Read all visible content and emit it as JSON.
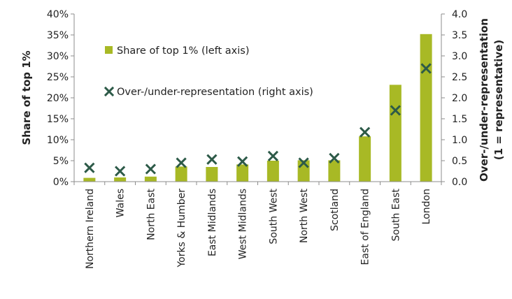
{
  "chart_data": {
    "type": "bar",
    "categories": [
      "Northern Ireland",
      "Wales",
      "North East",
      "Yorks & Humber",
      "East Midlands",
      "West Midlands",
      "South West",
      "North West",
      "Scotland",
      "East of England",
      "South East",
      "London"
    ],
    "series": [
      {
        "name": "Share of top 1% (left axis)",
        "type": "bar",
        "axis": "left",
        "color": "#a8b925",
        "values": [
          0.9,
          1.0,
          1.2,
          3.6,
          3.5,
          4.1,
          5.0,
          5.1,
          5.1,
          10.8,
          23.1,
          35.2
        ]
      },
      {
        "name": "Over-/under-representation (right axis)",
        "type": "scatter",
        "marker": "x",
        "axis": "right",
        "color": "#2d5a48",
        "values": [
          0.33,
          0.25,
          0.3,
          0.45,
          0.53,
          0.48,
          0.61,
          0.45,
          0.56,
          1.18,
          1.7,
          2.7
        ]
      }
    ],
    "left_axis": {
      "label": "Share of top 1%",
      "ylim": [
        0,
        40
      ],
      "ticks": [
        "0%",
        "5%",
        "10%",
        "15%",
        "20%",
        "25%",
        "30%",
        "35%",
        "40%"
      ]
    },
    "right_axis": {
      "label_line1": "Over-/under-representation",
      "label_line2": "(1 = representative)",
      "ylim": [
        0,
        4
      ],
      "ticks": [
        "0.0",
        "0.5",
        "1.0",
        "1.5",
        "2.0",
        "2.5",
        "3.0",
        "3.5",
        "4.0"
      ]
    },
    "grid": false,
    "legend_position": "top-left"
  }
}
